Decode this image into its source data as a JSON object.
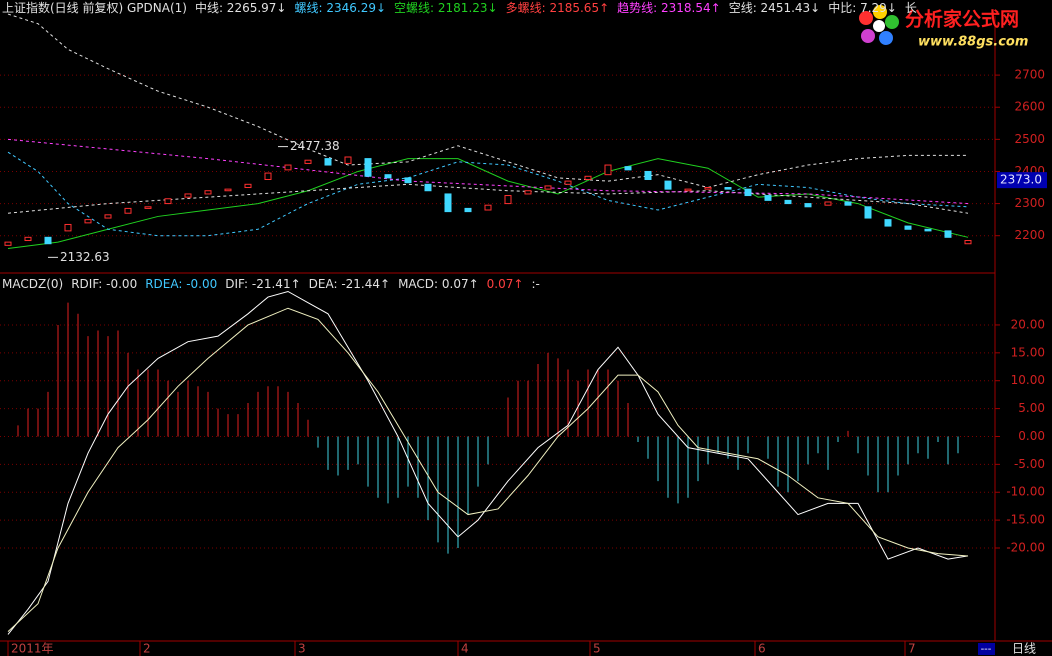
{
  "header": {
    "title": "上证指数(日线 前复权) GPDNA(1)",
    "items": [
      {
        "text": "中线: 2265.97↓",
        "color": "#e0e0e0"
      },
      {
        "text": "螺线: 2346.29↓",
        "color": "#40c8ff"
      },
      {
        "text": "空螺线: 2181.23↓",
        "color": "#20d020"
      },
      {
        "text": "多螺线: 2185.65↑",
        "color": "#ff4040"
      },
      {
        "text": "趋势线: 2318.54↑",
        "color": "#ff40ff"
      },
      {
        "text": "空线: 2451.43↓",
        "color": "#e0e0e0"
      },
      {
        "text": "中比: 7.29↓",
        "color": "#e0e0e0"
      },
      {
        "text": "长",
        "color": "#e0e0e0"
      }
    ]
  },
  "logo": {
    "name": "分析家公式网",
    "url": "www.88gs.com"
  },
  "macd_header": {
    "items": [
      {
        "text": "MACDZ(0)",
        "color": "#e0e0e0"
      },
      {
        "text": "RDIF: -0.00",
        "color": "#e0e0e0"
      },
      {
        "text": "RDEA: -0.00",
        "color": "#40c8ff"
      },
      {
        "text": "DIF: -21.41↑",
        "color": "#e0e0e0"
      },
      {
        "text": "DEA: -21.44↑",
        "color": "#e0e0e0"
      },
      {
        "text": "MACD: 0.07↑",
        "color": "#e0e0e0"
      },
      {
        "text": "0.07↑",
        "color": "#ff4040"
      },
      {
        "text": ":-",
        "color": "#e0e0e0"
      }
    ]
  },
  "footer": {
    "period": "日线",
    "marker": "---"
  },
  "chart_data": [
    {
      "type": "candlestick",
      "up_color": "#ff3030",
      "down_color": "#40d8ff",
      "xlim": [
        -0.5,
        97.2
      ],
      "ylim": [
        2087,
        2884
      ],
      "yticks": [
        2200,
        2300,
        2400,
        2500,
        2600,
        2700
      ],
      "grid": true,
      "x": [
        0,
        2,
        4,
        6,
        8,
        10,
        12,
        14,
        16,
        18,
        20,
        22,
        24,
        26,
        28,
        30,
        32,
        34,
        36,
        38,
        40,
        42,
        44,
        46,
        48,
        50,
        52,
        54,
        56,
        58,
        60,
        62,
        64,
        66,
        68,
        70,
        72,
        74,
        76,
        78,
        80,
        82,
        84,
        86,
        88,
        90,
        92,
        94,
        96
      ],
      "open": [
        2170,
        2185,
        2195,
        2215,
        2240,
        2255,
        2270,
        2285,
        2300,
        2320,
        2330,
        2340,
        2350,
        2375,
        2405,
        2425,
        2440,
        2425,
        2440,
        2390,
        2380,
        2360,
        2330,
        2285,
        2280,
        2300,
        2330,
        2345,
        2360,
        2375,
        2390,
        2415,
        2400,
        2370,
        2340,
        2345,
        2350,
        2345,
        2325,
        2310,
        2300,
        2295,
        2305,
        2290,
        2250,
        2230,
        2220,
        2215,
        2175
      ],
      "close": [
        2180,
        2195,
        2175,
        2235,
        2250,
        2265,
        2285,
        2290,
        2315,
        2330,
        2340,
        2345,
        2360,
        2395,
        2420,
        2435,
        2420,
        2445,
        2385,
        2380,
        2365,
        2340,
        2275,
        2275,
        2295,
        2325,
        2340,
        2355,
        2370,
        2385,
        2420,
        2405,
        2375,
        2345,
        2345,
        2350,
        2345,
        2325,
        2310,
        2300,
        2290,
        2305,
        2295,
        2255,
        2230,
        2220,
        2215,
        2195,
        2185
      ],
      "lines": [
        {
          "color": "#20d020",
          "dashed": false,
          "x": [
            0,
            5,
            10,
            15,
            20,
            25,
            30,
            35,
            40,
            45,
            50,
            55,
            60,
            65,
            70,
            75,
            80,
            85,
            90,
            96
          ],
          "values": [
            2160,
            2180,
            2220,
            2260,
            2280,
            2300,
            2340,
            2400,
            2440,
            2440,
            2370,
            2330,
            2400,
            2440,
            2410,
            2320,
            2330,
            2300,
            2240,
            2195
          ]
        },
        {
          "color": "#e0e0e0",
          "dashed": true,
          "x": [
            0,
            3,
            6,
            10,
            15,
            20,
            25,
            30,
            34,
            40,
            45,
            50,
            55,
            60,
            65,
            70,
            75,
            80,
            85,
            90,
            96
          ],
          "values": [
            2890,
            2860,
            2780,
            2720,
            2650,
            2600,
            2540,
            2470,
            2420,
            2430,
            2480,
            2430,
            2380,
            2370,
            2390,
            2350,
            2390,
            2420,
            2440,
            2450,
            2450
          ]
        },
        {
          "color": "#40c8ff",
          "dashed": true,
          "x": [
            0,
            3,
            6,
            10,
            15,
            20,
            25,
            30,
            35,
            40,
            45,
            50,
            55,
            60,
            65,
            70,
            75,
            80,
            85,
            90,
            96
          ],
          "values": [
            2460,
            2400,
            2300,
            2220,
            2200,
            2200,
            2220,
            2300,
            2360,
            2380,
            2430,
            2420,
            2370,
            2310,
            2280,
            2320,
            2360,
            2350,
            2320,
            2300,
            2290
          ]
        },
        {
          "color": "#e0e0e0",
          "dashed": true,
          "x": [
            0,
            10,
            20,
            30,
            40,
            50,
            60,
            70,
            80,
            90,
            96
          ],
          "values": [
            2270,
            2300,
            2320,
            2340,
            2360,
            2340,
            2330,
            2340,
            2320,
            2300,
            2270
          ]
        },
        {
          "color": "#ff40ff",
          "dashed": true,
          "x": [
            0,
            20,
            40,
            60,
            80,
            96
          ],
          "values": [
            2500,
            2440,
            2370,
            2340,
            2330,
            2300
          ]
        }
      ],
      "annotations": [
        {
          "value": 2477.38,
          "x": 27
        },
        {
          "value": 2132.63,
          "x": 4
        }
      ],
      "current": {
        "value": 2373.0,
        "label": "2373.0"
      }
    },
    {
      "type": "bar",
      "up_color": "#e02020",
      "down_color": "#40d0e0",
      "xlim": [
        -0.5,
        97.2
      ],
      "ylim": [
        -36.5,
        28.6
      ],
      "yticks": [
        {
          "value": 20,
          "label": "20.00"
        },
        {
          "value": 15,
          "label": "15.00"
        },
        {
          "value": 10,
          "label": "10.00"
        },
        {
          "value": 5,
          "label": "5.00"
        },
        {
          "value": 0,
          "label": "0.00"
        },
        {
          "value": -5,
          "label": "-5.00"
        },
        {
          "value": -10,
          "label": "-10.00"
        },
        {
          "value": -15,
          "label": "-15.00"
        },
        {
          "value": -20,
          "label": "-20.00"
        }
      ],
      "grid": true,
      "xticks": [
        {
          "value": 0,
          "label": "2011年"
        },
        {
          "value": 13.2,
          "label": "2"
        },
        {
          "value": 28.7,
          "label": "3"
        },
        {
          "value": 45,
          "label": "4"
        },
        {
          "value": 58.2,
          "label": "5"
        },
        {
          "value": 74.7,
          "label": "6"
        },
        {
          "value": 89.7,
          "label": "7"
        }
      ],
      "values": [
        0,
        2,
        5,
        5,
        8,
        20,
        24,
        22,
        18,
        19,
        18,
        19,
        15,
        12,
        12,
        12,
        10,
        8,
        10,
        9,
        8,
        5,
        4,
        4,
        6,
        8,
        9,
        9,
        8,
        6,
        3,
        -2,
        -6,
        -7,
        -6,
        -5,
        -9,
        -11,
        -12,
        -11,
        -9,
        -11,
        -15,
        -19,
        -21,
        -20,
        -14,
        -9,
        -5,
        0,
        7,
        10,
        10,
        13,
        15,
        14,
        12,
        10,
        12,
        12,
        12,
        10,
        6,
        -1,
        -4,
        -8,
        -11,
        -12,
        -11,
        -8,
        -5,
        -3,
        -4,
        -6,
        -3,
        0,
        -4,
        -9,
        -10,
        -8,
        -5,
        -3,
        -6,
        -1,
        1,
        -3,
        -7,
        -10,
        -10,
        -7,
        -5,
        -3,
        -4,
        -1,
        -5,
        -3,
        0.07
      ],
      "series": [
        {
          "color": "#ffffff",
          "x": [
            0,
            2,
            4,
            6,
            8,
            10,
            12,
            15,
            18,
            21,
            24,
            26,
            28,
            30,
            32,
            34,
            36,
            39,
            42,
            45,
            47,
            50,
            53,
            56,
            59,
            61,
            63,
            65,
            68,
            71,
            74,
            77,
            79,
            82,
            85,
            88,
            91,
            94,
            96
          ],
          "values": [
            -35.5,
            -31,
            -26,
            -12,
            -3,
            4,
            9,
            14,
            17,
            18,
            22,
            25,
            26,
            24,
            22,
            16,
            10,
            0,
            -12,
            -18,
            -15,
            -8,
            -2,
            2,
            12,
            16,
            11,
            4,
            -2,
            -3,
            -4,
            -10,
            -14,
            -12,
            -12,
            -22,
            -20,
            -22,
            -21.41
          ]
        },
        {
          "color": "#f0f0c0",
          "x": [
            0,
            3,
            5,
            8,
            11,
            14,
            17,
            20,
            24,
            28,
            31,
            34,
            37,
            40,
            43,
            46,
            49,
            52,
            55,
            58,
            61,
            63,
            65,
            67,
            69,
            72,
            75,
            78,
            81,
            84,
            87,
            90,
            93,
            96
          ],
          "values": [
            -35,
            -30,
            -20,
            -10,
            -2,
            3,
            9,
            14,
            20,
            23,
            21,
            15,
            8,
            -1,
            -10,
            -14,
            -13,
            -7,
            0,
            5,
            11,
            11,
            8,
            2,
            -2,
            -3,
            -4,
            -7,
            -11,
            -12,
            -18,
            -20,
            -21,
            -21.44
          ]
        }
      ]
    }
  ]
}
